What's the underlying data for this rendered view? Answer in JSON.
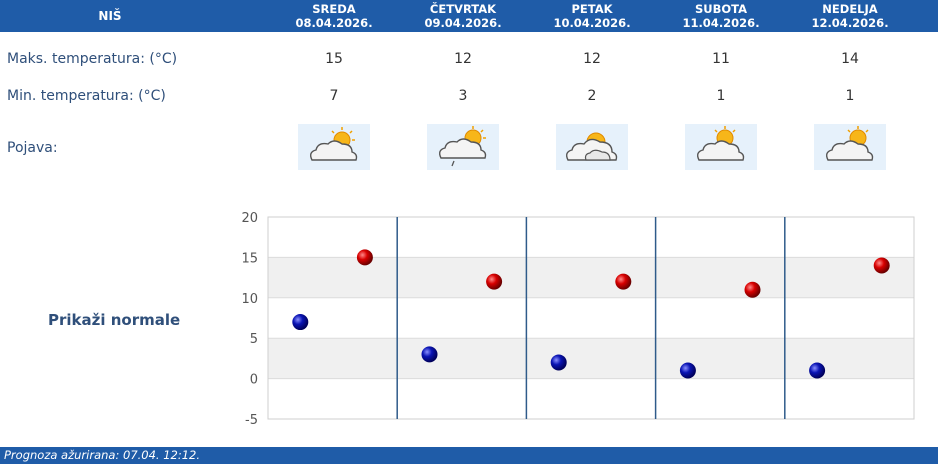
{
  "header": {
    "city": "NIŠ",
    "days": [
      {
        "name": "SREDA",
        "date": "08.04.2026."
      },
      {
        "name": "ČETVRTAK",
        "date": "09.04.2026."
      },
      {
        "name": "PETAK",
        "date": "10.04.2026."
      },
      {
        "name": "SUBOTA",
        "date": "11.04.2026."
      },
      {
        "name": "NEDELJA",
        "date": "12.04.2026."
      }
    ]
  },
  "rows": {
    "max_label": "Maks. temperatura: (°C)",
    "min_label": "Min. temperatura: (°C)",
    "phenomenon_label": "Pojava:",
    "max_values": [
      "15",
      "12",
      "12",
      "11",
      "14"
    ],
    "min_values": [
      "7",
      "3",
      "2",
      "1",
      "1"
    ],
    "icons": [
      "partly-cloudy-icon",
      "partly-cloudy-light-rain-icon",
      "cloudy-sun-icon",
      "partly-cloudy-icon",
      "partly-cloudy-icon"
    ]
  },
  "normals_link": "Prikaži normale",
  "footer": {
    "text": "Prognoza ažurirana:  07.04. 12:12."
  },
  "colors": {
    "header_bg": "#1f5ca8",
    "max_marker": "#cc0000",
    "min_marker": "#0a14b4",
    "band": "#f0f0f0"
  },
  "chart_data": {
    "type": "scatter",
    "categories": [
      "SREDA",
      "ČETVRTAK",
      "PETAK",
      "SUBOTA",
      "NEDELJA"
    ],
    "ylim": [
      -5,
      20
    ],
    "yticks": [
      20,
      15,
      10,
      5,
      0,
      -5
    ],
    "series": [
      {
        "values": [
          15,
          12,
          12,
          11,
          14
        ]
      },
      {
        "values": [
          7,
          3,
          2,
          1,
          1
        ]
      }
    ]
  }
}
